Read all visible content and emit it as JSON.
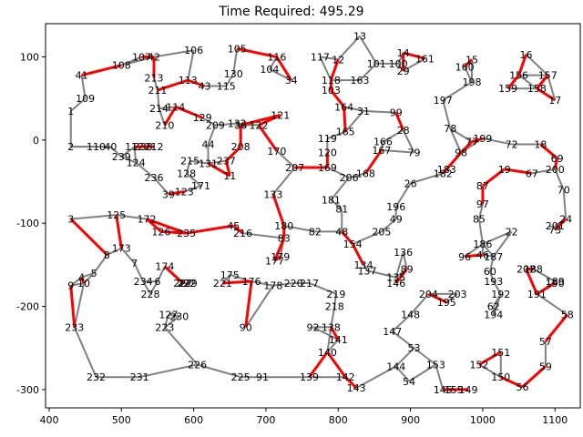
{
  "chart_data": {
    "type": "scatter",
    "title": "Time Required: 495.29",
    "xlabel": "",
    "ylabel": "",
    "xlim": [
      395,
      1135
    ],
    "ylim": [
      -322,
      140
    ],
    "x_ticks": [
      400,
      500,
      600,
      700,
      800,
      900,
      1000,
      1100
    ],
    "y_ticks": [
      100,
      0,
      -100,
      -200,
      -300
    ],
    "grid": false,
    "colors": {
      "route": "#ff0000",
      "edge": "#808080",
      "text": "#000000"
    },
    "points": [
      {
        "label": "1",
        "x": 430,
        "y": 35
      },
      {
        "label": "2",
        "x": 430,
        "y": -8
      },
      {
        "label": "3",
        "x": 430,
        "y": -95
      },
      {
        "label": "4",
        "x": 445,
        "y": -165
      },
      {
        "label": "5",
        "x": 462,
        "y": -160
      },
      {
        "label": "6",
        "x": 550,
        "y": -170
      },
      {
        "label": "7",
        "x": 518,
        "y": -148
      },
      {
        "label": "8",
        "x": 480,
        "y": -138
      },
      {
        "label": "9",
        "x": 430,
        "y": -175
      },
      {
        "label": "10",
        "x": 448,
        "y": -172
      },
      {
        "label": "11",
        "x": 650,
        "y": -43
      },
      {
        "label": "12",
        "x": 800,
        "y": 97
      },
      {
        "label": "13",
        "x": 830,
        "y": 125
      },
      {
        "label": "14",
        "x": 890,
        "y": 105
      },
      {
        "label": "15",
        "x": 985,
        "y": 97
      },
      {
        "label": "16",
        "x": 1060,
        "y": 103
      },
      {
        "label": "17",
        "x": 1100,
        "y": 48
      },
      {
        "label": "18",
        "x": 1080,
        "y": -5
      },
      {
        "label": "19",
        "x": 1030,
        "y": -35
      },
      {
        "label": "22",
        "x": 1040,
        "y": -110
      },
      {
        "label": "24",
        "x": 1115,
        "y": -95
      },
      {
        "label": "26",
        "x": 900,
        "y": -52
      },
      {
        "label": "28",
        "x": 890,
        "y": 12
      },
      {
        "label": "29",
        "x": 890,
        "y": 83
      },
      {
        "label": "31",
        "x": 835,
        "y": 35
      },
      {
        "label": "34",
        "x": 735,
        "y": 72
      },
      {
        "label": "36",
        "x": 665,
        "y": 18
      },
      {
        "label": "39",
        "x": 565,
        "y": -65
      },
      {
        "label": "40",
        "x": 485,
        "y": -8
      },
      {
        "label": "41",
        "x": 445,
        "y": 78
      },
      {
        "label": "42",
        "x": 545,
        "y": 100
      },
      {
        "label": "43",
        "x": 615,
        "y": 65
      },
      {
        "label": "44",
        "x": 620,
        "y": -5
      },
      {
        "label": "45",
        "x": 655,
        "y": -103
      },
      {
        "label": "46",
        "x": 1000,
        "y": -138
      },
      {
        "label": "48",
        "x": 805,
        "y": -110
      },
      {
        "label": "49",
        "x": 880,
        "y": -95
      },
      {
        "label": "53",
        "x": 905,
        "y": -250
      },
      {
        "label": "54",
        "x": 898,
        "y": -290
      },
      {
        "label": "56",
        "x": 1055,
        "y": -297
      },
      {
        "label": "57",
        "x": 1087,
        "y": -242
      },
      {
        "label": "58",
        "x": 1117,
        "y": -210
      },
      {
        "label": "59",
        "x": 1087,
        "y": -272
      },
      {
        "label": "60",
        "x": 1010,
        "y": -158
      },
      {
        "label": "62",
        "x": 1015,
        "y": -200
      },
      {
        "label": "67",
        "x": 1068,
        "y": -40
      },
      {
        "label": "69",
        "x": 1103,
        "y": -22
      },
      {
        "label": "70",
        "x": 1112,
        "y": -60
      },
      {
        "label": "72",
        "x": 1040,
        "y": -5
      },
      {
        "label": "73",
        "x": 1100,
        "y": -108
      },
      {
        "label": "77",
        "x": 985,
        "y": -2
      },
      {
        "label": "78",
        "x": 955,
        "y": 14
      },
      {
        "label": "79",
        "x": 905,
        "y": -15
      },
      {
        "label": "81",
        "x": 805,
        "y": -83
      },
      {
        "label": "82",
        "x": 768,
        "y": -110
      },
      {
        "label": "83",
        "x": 725,
        "y": -118
      },
      {
        "label": "85",
        "x": 995,
        "y": -95
      },
      {
        "label": "87",
        "x": 1000,
        "y": -55
      },
      {
        "label": "89",
        "x": 895,
        "y": -155
      },
      {
        "label": "90",
        "x": 672,
        "y": -225
      },
      {
        "label": "91",
        "x": 695,
        "y": -285
      },
      {
        "label": "92",
        "x": 765,
        "y": -225
      },
      {
        "label": "96",
        "x": 975,
        "y": -140
      },
      {
        "label": "97",
        "x": 1000,
        "y": -77
      },
      {
        "label": "98",
        "x": 970,
        "y": -15
      },
      {
        "label": "99",
        "x": 880,
        "y": 33
      },
      {
        "label": "100",
        "x": 883,
        "y": 92
      },
      {
        "label": "101",
        "x": 853,
        "y": 92
      },
      {
        "label": "103",
        "x": 790,
        "y": 60
      },
      {
        "label": "104",
        "x": 705,
        "y": 85
      },
      {
        "label": "105",
        "x": 660,
        "y": 110
      },
      {
        "label": "106",
        "x": 600,
        "y": 108
      },
      {
        "label": "107",
        "x": 528,
        "y": 100
      },
      {
        "label": "108",
        "x": 500,
        "y": 90
      },
      {
        "label": "109",
        "x": 450,
        "y": 50
      },
      {
        "label": "110",
        "x": 465,
        "y": -8
      },
      {
        "label": "112",
        "x": 518,
        "y": -8
      },
      {
        "label": "113",
        "x": 592,
        "y": 72
      },
      {
        "label": "114",
        "x": 575,
        "y": 40
      },
      {
        "label": "115",
        "x": 645,
        "y": 65
      },
      {
        "label": "116",
        "x": 715,
        "y": 100
      },
      {
        "label": "117",
        "x": 775,
        "y": 100
      },
      {
        "label": "118",
        "x": 790,
        "y": 72
      },
      {
        "label": "119",
        "x": 785,
        "y": 2
      },
      {
        "label": "120",
        "x": 785,
        "y": -15
      },
      {
        "label": "121",
        "x": 720,
        "y": 30
      },
      {
        "label": "122",
        "x": 690,
        "y": 18
      },
      {
        "label": "123",
        "x": 587,
        "y": -62
      },
      {
        "label": "124",
        "x": 520,
        "y": -27
      },
      {
        "label": "125",
        "x": 493,
        "y": -90
      },
      {
        "label": "126",
        "x": 555,
        "y": -110
      },
      {
        "label": "127",
        "x": 565,
        "y": -210
      },
      {
        "label": "128",
        "x": 590,
        "y": -40
      },
      {
        "label": "129",
        "x": 612,
        "y": 27
      },
      {
        "label": "130",
        "x": 655,
        "y": 80
      },
      {
        "label": "131",
        "x": 620,
        "y": -28
      },
      {
        "label": "132",
        "x": 660,
        "y": 20
      },
      {
        "label": "133",
        "x": 710,
        "y": -65
      },
      {
        "label": "134",
        "x": 835,
        "y": -150
      },
      {
        "label": "135",
        "x": 880,
        "y": -165
      },
      {
        "label": "136",
        "x": 890,
        "y": -135
      },
      {
        "label": "137",
        "x": 840,
        "y": -157
      },
      {
        "label": "138",
        "x": 790,
        "y": -225
      },
      {
        "label": "139",
        "x": 760,
        "y": -285
      },
      {
        "label": "140",
        "x": 785,
        "y": -255
      },
      {
        "label": "141",
        "x": 800,
        "y": -240
      },
      {
        "label": "142",
        "x": 810,
        "y": -285
      },
      {
        "label": "143",
        "x": 825,
        "y": -298
      },
      {
        "label": "144",
        "x": 880,
        "y": -272
      },
      {
        "label": "145",
        "x": 945,
        "y": -300
      },
      {
        "label": "146",
        "x": 880,
        "y": -172
      },
      {
        "label": "147",
        "x": 875,
        "y": -230
      },
      {
        "label": "148",
        "x": 900,
        "y": -210
      },
      {
        "label": "149",
        "x": 980,
        "y": -300
      },
      {
        "label": "150",
        "x": 1025,
        "y": -285
      },
      {
        "label": "151",
        "x": 1025,
        "y": -255
      },
      {
        "label": "152",
        "x": 995,
        "y": -270
      },
      {
        "label": "153",
        "x": 935,
        "y": -270
      },
      {
        "label": "154",
        "x": 820,
        "y": -125
      },
      {
        "label": "155",
        "x": 960,
        "y": -300
      },
      {
        "label": "156",
        "x": 1050,
        "y": 78
      },
      {
        "label": "157",
        "x": 1090,
        "y": 78
      },
      {
        "label": "158",
        "x": 1075,
        "y": 62
      },
      {
        "label": "159",
        "x": 1035,
        "y": 62
      },
      {
        "label": "160",
        "x": 975,
        "y": 88
      },
      {
        "label": "161",
        "x": 920,
        "y": 98
      },
      {
        "label": "163",
        "x": 830,
        "y": 72
      },
      {
        "label": "164",
        "x": 808,
        "y": 40
      },
      {
        "label": "165",
        "x": 810,
        "y": 10
      },
      {
        "label": "166",
        "x": 862,
        "y": -2
      },
      {
        "label": "167",
        "x": 860,
        "y": -12
      },
      {
        "label": "168",
        "x": 838,
        "y": -40
      },
      {
        "label": "169",
        "x": 785,
        "y": -33
      },
      {
        "label": "170",
        "x": 715,
        "y": -13
      },
      {
        "label": "171",
        "x": 610,
        "y": -55
      },
      {
        "label": "172",
        "x": 535,
        "y": -95
      },
      {
        "label": "173",
        "x": 500,
        "y": -130
      },
      {
        "label": "174",
        "x": 560,
        "y": -152
      },
      {
        "label": "175",
        "x": 650,
        "y": -162
      },
      {
        "label": "176",
        "x": 680,
        "y": -170
      },
      {
        "label": "177",
        "x": 712,
        "y": -145
      },
      {
        "label": "178",
        "x": 710,
        "y": -175
      },
      {
        "label": "179",
        "x": 720,
        "y": -140
      },
      {
        "label": "180",
        "x": 725,
        "y": -103
      },
      {
        "label": "181",
        "x": 790,
        "y": -72
      },
      {
        "label": "182",
        "x": 945,
        "y": -40
      },
      {
        "label": "183",
        "x": 950,
        "y": -35
      },
      {
        "label": "186",
        "x": 1000,
        "y": -125
      },
      {
        "label": "187",
        "x": 1015,
        "y": -140
      },
      {
        "label": "188",
        "x": 1070,
        "y": -155
      },
      {
        "label": "189",
        "x": 1100,
        "y": -170
      },
      {
        "label": "190",
        "x": 1100,
        "y": -172
      },
      {
        "label": "191",
        "x": 1075,
        "y": -185
      },
      {
        "label": "192",
        "x": 1025,
        "y": -185
      },
      {
        "label": "193",
        "x": 1015,
        "y": -170
      },
      {
        "label": "194",
        "x": 1015,
        "y": -210
      },
      {
        "label": "195",
        "x": 950,
        "y": -195
      },
      {
        "label": "196",
        "x": 880,
        "y": -80
      },
      {
        "label": "197",
        "x": 945,
        "y": 48
      },
      {
        "label": "198",
        "x": 985,
        "y": 70
      },
      {
        "label": "199",
        "x": 1000,
        "y": 2
      },
      {
        "label": "200",
        "x": 1100,
        "y": -35
      },
      {
        "label": "201",
        "x": 1100,
        "y": -103
      },
      {
        "label": "202",
        "x": 1060,
        "y": -155
      },
      {
        "label": "203",
        "x": 965,
        "y": -185
      },
      {
        "label": "204",
        "x": 925,
        "y": -185
      },
      {
        "label": "205",
        "x": 860,
        "y": -110
      },
      {
        "label": "206",
        "x": 815,
        "y": -45
      },
      {
        "label": "207",
        "x": 740,
        "y": -33
      },
      {
        "label": "208",
        "x": 665,
        "y": -8
      },
      {
        "label": "209",
        "x": 630,
        "y": 18
      },
      {
        "label": "210",
        "x": 560,
        "y": 18
      },
      {
        "label": "211",
        "x": 550,
        "y": 60
      },
      {
        "label": "212",
        "x": 545,
        "y": -8
      },
      {
        "label": "213",
        "x": 545,
        "y": 75
      },
      {
        "label": "214",
        "x": 552,
        "y": 38
      },
      {
        "label": "215",
        "x": 595,
        "y": -25
      },
      {
        "label": "216",
        "x": 668,
        "y": -112
      },
      {
        "label": "217",
        "x": 760,
        "y": -172
      },
      {
        "label": "218",
        "x": 795,
        "y": -200
      },
      {
        "label": "219",
        "x": 797,
        "y": -185
      },
      {
        "label": "220",
        "x": 738,
        "y": -172
      },
      {
        "label": "221",
        "x": 640,
        "y": -172
      },
      {
        "label": "222",
        "x": 590,
        "y": -172
      },
      {
        "label": "223",
        "x": 560,
        "y": -225
      },
      {
        "label": "225",
        "x": 665,
        "y": -285
      },
      {
        "label": "226",
        "x": 605,
        "y": -270
      },
      {
        "label": "227",
        "x": 585,
        "y": -172
      },
      {
        "label": "228",
        "x": 540,
        "y": -185
      },
      {
        "label": "229",
        "x": 592,
        "y": -172
      },
      {
        "label": "230",
        "x": 580,
        "y": -212
      },
      {
        "label": "231",
        "x": 525,
        "y": -285
      },
      {
        "label": "232",
        "x": 465,
        "y": -285
      },
      {
        "label": "233",
        "x": 435,
        "y": -225
      },
      {
        "label": "234",
        "x": 530,
        "y": -170
      },
      {
        "label": "235",
        "x": 590,
        "y": -112
      },
      {
        "label": "236",
        "x": 545,
        "y": -45
      },
      {
        "label": "237",
        "x": 645,
        "y": -25
      },
      {
        "label": "238",
        "x": 530,
        "y": -8
      },
      {
        "label": "239",
        "x": 500,
        "y": -20
      }
    ]
  }
}
